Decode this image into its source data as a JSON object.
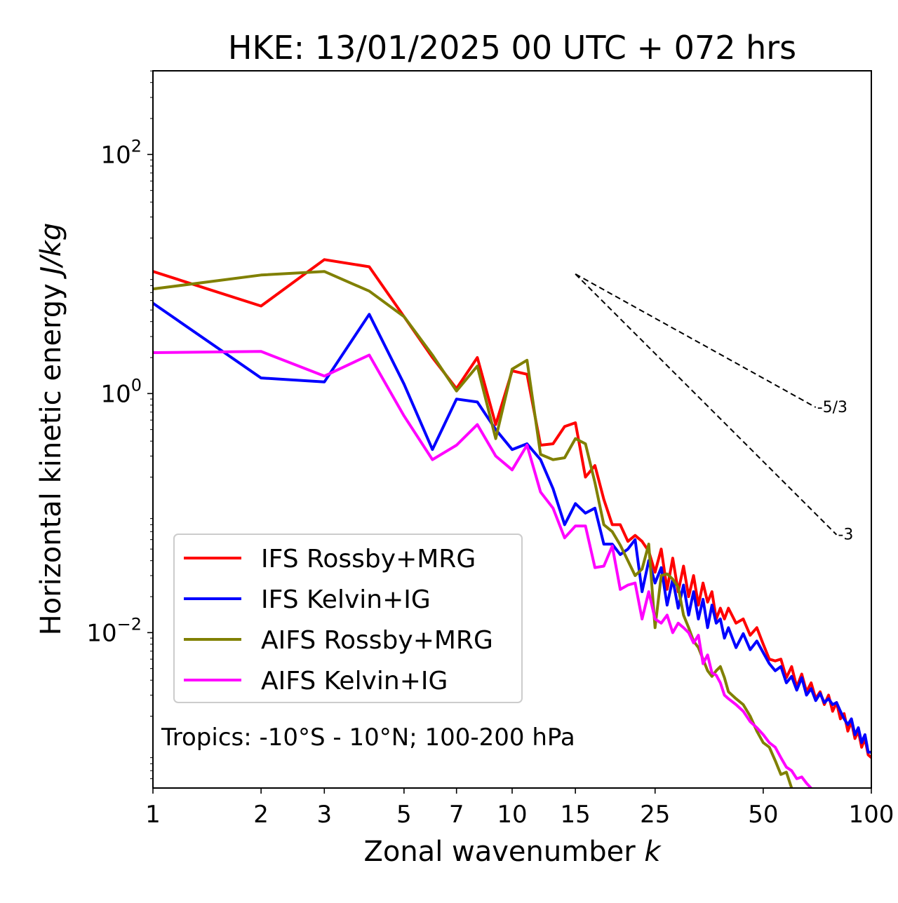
{
  "chart_data": {
    "type": "line",
    "title": "HKE: 13/01/2025 00 UTC + 072 hrs",
    "xlabel_main": "Zonal wavenumber ",
    "xlabel_italic": "k",
    "ylabel_main": "Horizontal kinetic energy ",
    "ylabel_italic": "J/kg",
    "xscale": "log",
    "yscale": "log",
    "xlim": [
      1,
      100
    ],
    "ylim_log10": [
      -3.3,
      2.7
    ],
    "x_ticks": [
      {
        "value": 1,
        "label": "1"
      },
      {
        "value": 2,
        "label": "2"
      },
      {
        "value": 3,
        "label": "3"
      },
      {
        "value": 5,
        "label": "5"
      },
      {
        "value": 7,
        "label": "7"
      },
      {
        "value": 10,
        "label": "10"
      },
      {
        "value": 15,
        "label": "15"
      },
      {
        "value": 25,
        "label": "25"
      },
      {
        "value": 50,
        "label": "50"
      },
      {
        "value": 100,
        "label": "100"
      }
    ],
    "y_ticks": [
      {
        "exp": 2,
        "base": "10",
        "sup": "2"
      },
      {
        "exp": 0,
        "base": "10",
        "sup": "0"
      },
      {
        "exp": -2,
        "base": "10",
        "sup": "−2"
      }
    ],
    "annotation": "Tropics: -10°S - 10°N; 100-200 hPa",
    "reference_slopes": [
      {
        "label": "-5/3",
        "slope": -1.667,
        "x_start": 15,
        "x_end": 70,
        "y_start": 10
      },
      {
        "label": "-3",
        "slope": -3,
        "x_start": 15,
        "x_end": 80,
        "y_start": 10
      }
    ],
    "legend_position": "lower-left",
    "series": [
      {
        "name": "IFS Rossby+MRG",
        "color": "#ff0000",
        "points": [
          [
            1,
            10.5
          ],
          [
            2,
            5.4
          ],
          [
            3,
            13.2
          ],
          [
            4,
            11.5
          ],
          [
            5,
            4.4
          ],
          [
            6,
            2.0
          ],
          [
            7,
            1.1
          ],
          [
            8,
            2.0
          ],
          [
            9,
            0.55
          ],
          [
            10,
            1.55
          ],
          [
            11,
            1.45
          ],
          [
            12,
            0.37
          ],
          [
            13,
            0.38
          ],
          [
            14,
            0.53
          ],
          [
            15,
            0.57
          ],
          [
            16,
            0.2
          ],
          [
            17,
            0.25
          ],
          [
            18,
            0.13
          ],
          [
            19,
            0.08
          ],
          [
            20,
            0.08
          ],
          [
            21,
            0.058
          ],
          [
            22,
            0.065
          ],
          [
            23,
            0.058
          ],
          [
            24,
            0.048
          ],
          [
            25,
            0.032
          ],
          [
            26,
            0.05
          ],
          [
            27,
            0.023
          ],
          [
            28,
            0.042
          ],
          [
            29,
            0.022
          ],
          [
            30,
            0.036
          ],
          [
            31,
            0.02
          ],
          [
            32,
            0.03
          ],
          [
            33,
            0.017
          ],
          [
            34,
            0.026
          ],
          [
            35,
            0.018
          ],
          [
            36,
            0.022
          ],
          [
            37,
            0.013
          ],
          [
            38,
            0.016
          ],
          [
            39,
            0.013
          ],
          [
            40,
            0.016
          ],
          [
            42,
            0.012
          ],
          [
            44,
            0.013
          ],
          [
            46,
            0.0095
          ],
          [
            48,
            0.011
          ],
          [
            50,
            0.008
          ],
          [
            52,
            0.006
          ],
          [
            54,
            0.0058
          ],
          [
            56,
            0.006
          ],
          [
            58,
            0.0042
          ],
          [
            60,
            0.0052
          ],
          [
            62,
            0.0035
          ],
          [
            64,
            0.0045
          ],
          [
            66,
            0.0032
          ],
          [
            68,
            0.0038
          ],
          [
            70,
            0.0028
          ],
          [
            72,
            0.0032
          ],
          [
            74,
            0.0025
          ],
          [
            76,
            0.003
          ],
          [
            78,
            0.0022
          ],
          [
            80,
            0.0026
          ],
          [
            82,
            0.0019
          ],
          [
            84,
            0.0021
          ],
          [
            86,
            0.0015
          ],
          [
            88,
            0.0018
          ],
          [
            90,
            0.0013
          ],
          [
            92,
            0.0015
          ],
          [
            94,
            0.0011
          ],
          [
            96,
            0.0013
          ],
          [
            98,
            0.00095
          ],
          [
            100,
            0.0009
          ]
        ]
      },
      {
        "name": "IFS Kelvin+IG",
        "color": "#0000ff",
        "points": [
          [
            1,
            5.7
          ],
          [
            2,
            1.35
          ],
          [
            3,
            1.25
          ],
          [
            4,
            4.6
          ],
          [
            5,
            1.2
          ],
          [
            6,
            0.34
          ],
          [
            7,
            0.9
          ],
          [
            8,
            0.85
          ],
          [
            9,
            0.5
          ],
          [
            10,
            0.34
          ],
          [
            11,
            0.38
          ],
          [
            12,
            0.28
          ],
          [
            13,
            0.16
          ],
          [
            14,
            0.08
          ],
          [
            15,
            0.12
          ],
          [
            16,
            0.1
          ],
          [
            17,
            0.11
          ],
          [
            18,
            0.055
          ],
          [
            19,
            0.055
          ],
          [
            20,
            0.045
          ],
          [
            21,
            0.05
          ],
          [
            22,
            0.06
          ],
          [
            23,
            0.022
          ],
          [
            24,
            0.04
          ],
          [
            25,
            0.026
          ],
          [
            26,
            0.035
          ],
          [
            27,
            0.017
          ],
          [
            28,
            0.028
          ],
          [
            29,
            0.016
          ],
          [
            30,
            0.025
          ],
          [
            31,
            0.014
          ],
          [
            32,
            0.022
          ],
          [
            33,
            0.013
          ],
          [
            34,
            0.019
          ],
          [
            35,
            0.011
          ],
          [
            36,
            0.017
          ],
          [
            37,
            0.012
          ],
          [
            38,
            0.013
          ],
          [
            39,
            0.009
          ],
          [
            40,
            0.011
          ],
          [
            42,
            0.0075
          ],
          [
            44,
            0.0098
          ],
          [
            46,
            0.0072
          ],
          [
            48,
            0.0085
          ],
          [
            50,
            0.0068
          ],
          [
            52,
            0.0055
          ],
          [
            54,
            0.0048
          ],
          [
            56,
            0.0052
          ],
          [
            58,
            0.0038
          ],
          [
            60,
            0.0043
          ],
          [
            62,
            0.0033
          ],
          [
            64,
            0.0042
          ],
          [
            66,
            0.003
          ],
          [
            68,
            0.0034
          ],
          [
            70,
            0.0027
          ],
          [
            72,
            0.0031
          ],
          [
            74,
            0.0026
          ],
          [
            76,
            0.0028
          ],
          [
            78,
            0.0025
          ],
          [
            80,
            0.0026
          ],
          [
            82,
            0.0022
          ],
          [
            84,
            0.0019
          ],
          [
            86,
            0.0017
          ],
          [
            88,
            0.0019
          ],
          [
            90,
            0.0014
          ],
          [
            92,
            0.0016
          ],
          [
            94,
            0.0012
          ],
          [
            96,
            0.0014
          ],
          [
            98,
            0.001
          ],
          [
            100,
            0.001
          ]
        ]
      },
      {
        "name": "AIFS Rossby+MRG",
        "color": "#808000",
        "points": [
          [
            1,
            7.5
          ],
          [
            2,
            9.8
          ],
          [
            3,
            10.5
          ],
          [
            4,
            7.2
          ],
          [
            5,
            4.4
          ],
          [
            6,
            2.1
          ],
          [
            7,
            1.05
          ],
          [
            8,
            1.7
          ],
          [
            9,
            0.42
          ],
          [
            10,
            1.6
          ],
          [
            11,
            1.9
          ],
          [
            12,
            0.31
          ],
          [
            13,
            0.28
          ],
          [
            14,
            0.29
          ],
          [
            15,
            0.42
          ],
          [
            16,
            0.38
          ],
          [
            17,
            0.18
          ],
          [
            18,
            0.08
          ],
          [
            19,
            0.07
          ],
          [
            20,
            0.054
          ],
          [
            21,
            0.04
          ],
          [
            22,
            0.03
          ],
          [
            23,
            0.034
          ],
          [
            24,
            0.055
          ],
          [
            25,
            0.011
          ],
          [
            26,
            0.03
          ],
          [
            27,
            0.031
          ],
          [
            28,
            0.028
          ],
          [
            29,
            0.024
          ],
          [
            30,
            0.014
          ],
          [
            31,
            0.011
          ],
          [
            32,
            0.0085
          ],
          [
            33,
            0.0075
          ],
          [
            34,
            0.006
          ],
          [
            35,
            0.0048
          ],
          [
            36,
            0.0043
          ],
          [
            37,
            0.0048
          ],
          [
            38,
            0.0052
          ],
          [
            39,
            0.0042
          ],
          [
            40,
            0.0032
          ],
          [
            42,
            0.0028
          ],
          [
            44,
            0.0025
          ],
          [
            46,
            0.002
          ],
          [
            48,
            0.0015
          ],
          [
            50,
            0.0012
          ],
          [
            52,
            0.0011
          ],
          [
            54,
            0.00085
          ],
          [
            56,
            0.00065
          ],
          [
            58,
            0.00068
          ],
          [
            60,
            0.0005
          ]
        ]
      },
      {
        "name": "AIFS Kelvin+IG",
        "color": "#ff00ff",
        "points": [
          [
            1,
            2.2
          ],
          [
            2,
            2.25
          ],
          [
            3,
            1.4
          ],
          [
            4,
            2.1
          ],
          [
            5,
            0.65
          ],
          [
            6,
            0.28
          ],
          [
            7,
            0.37
          ],
          [
            8,
            0.55
          ],
          [
            9,
            0.3
          ],
          [
            10,
            0.23
          ],
          [
            11,
            0.37
          ],
          [
            12,
            0.15
          ],
          [
            13,
            0.11
          ],
          [
            14,
            0.062
          ],
          [
            15,
            0.078
          ],
          [
            16,
            0.078
          ],
          [
            17,
            0.035
          ],
          [
            18,
            0.036
          ],
          [
            19,
            0.053
          ],
          [
            20,
            0.023
          ],
          [
            21,
            0.025
          ],
          [
            22,
            0.026
          ],
          [
            23,
            0.013
          ],
          [
            24,
            0.022
          ],
          [
            25,
            0.013
          ],
          [
            26,
            0.012
          ],
          [
            27,
            0.014
          ],
          [
            28,
            0.01
          ],
          [
            29,
            0.012
          ],
          [
            30,
            0.011
          ],
          [
            31,
            0.01
          ],
          [
            32,
            0.0082
          ],
          [
            33,
            0.0095
          ],
          [
            34,
            0.0055
          ],
          [
            35,
            0.0065
          ],
          [
            36,
            0.0046
          ],
          [
            37,
            0.0044
          ],
          [
            38,
            0.0038
          ],
          [
            39,
            0.003
          ],
          [
            40,
            0.0028
          ],
          [
            42,
            0.0025
          ],
          [
            44,
            0.0022
          ],
          [
            46,
            0.0018
          ],
          [
            48,
            0.0016
          ],
          [
            50,
            0.0014
          ],
          [
            52,
            0.0012
          ],
          [
            54,
            0.0011
          ],
          [
            56,
            0.0009
          ],
          [
            58,
            0.00075
          ],
          [
            60,
            0.0007
          ],
          [
            62,
            0.0006
          ],
          [
            64,
            0.00062
          ],
          [
            66,
            0.00055
          ],
          [
            68,
            0.0005
          ]
        ]
      }
    ]
  }
}
